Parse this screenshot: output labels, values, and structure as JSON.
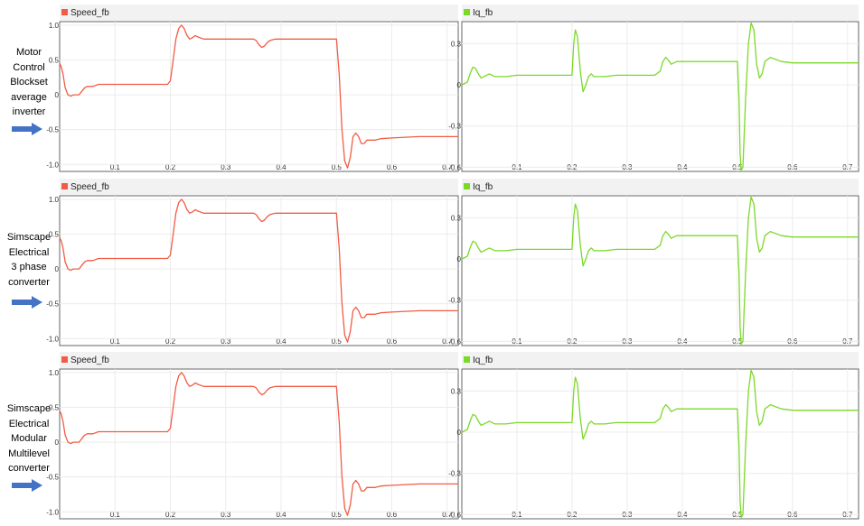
{
  "rows": [
    {
      "label": [
        "Motor",
        "Control",
        "Blockset",
        "average",
        "inverter"
      ]
    },
    {
      "label": [
        "Simscape",
        "Electrical",
        "3 phase",
        "converter"
      ]
    },
    {
      "label": [
        "Simscape",
        "Electrical",
        "Modular",
        "Multilevel",
        "converter"
      ]
    }
  ],
  "colors": {
    "speed": "#f25c45",
    "iq": "#7bd928",
    "arrow": "#4472c4",
    "axis_bg": "#ffffff",
    "header_bg": "#f2f2f2"
  },
  "chart_data": [
    {
      "type": "line",
      "panel": "Motor Control Blockset average inverter - Speed_fb",
      "series": [
        {
          "name": "Speed_fb",
          "x": [
            0,
            0.003,
            0.006,
            0.01,
            0.015,
            0.02,
            0.025,
            0.03,
            0.035,
            0.04,
            0.045,
            0.05,
            0.06,
            0.07,
            0.08,
            0.1,
            0.15,
            0.195,
            0.2,
            0.205,
            0.21,
            0.215,
            0.22,
            0.225,
            0.23,
            0.235,
            0.24,
            0.245,
            0.25,
            0.26,
            0.28,
            0.34,
            0.35,
            0.355,
            0.36,
            0.365,
            0.37,
            0.375,
            0.38,
            0.39,
            0.4,
            0.42,
            0.5,
            0.505,
            0.51,
            0.515,
            0.52,
            0.525,
            0.53,
            0.535,
            0.54,
            0.545,
            0.55,
            0.555,
            0.56,
            0.57,
            0.58,
            0.6,
            0.65,
            0.7,
            0.72
          ],
          "y": [
            0.45,
            0.4,
            0.3,
            0.1,
            0.0,
            -0.02,
            0.0,
            0.0,
            0.0,
            0.05,
            0.1,
            0.12,
            0.12,
            0.15,
            0.15,
            0.15,
            0.15,
            0.15,
            0.2,
            0.5,
            0.8,
            0.95,
            1.0,
            0.95,
            0.85,
            0.8,
            0.82,
            0.85,
            0.83,
            0.8,
            0.8,
            0.8,
            0.8,
            0.78,
            0.72,
            0.68,
            0.7,
            0.75,
            0.78,
            0.8,
            0.8,
            0.8,
            0.8,
            0.3,
            -0.5,
            -0.95,
            -1.05,
            -0.9,
            -0.6,
            -0.55,
            -0.6,
            -0.7,
            -0.7,
            -0.65,
            -0.65,
            -0.65,
            -0.63,
            -0.62,
            -0.6,
            -0.6,
            -0.6
          ]
        }
      ],
      "xlim": [
        0,
        0.72
      ],
      "ylim": [
        -1.1,
        1.05
      ],
      "xticks": [
        "0.1",
        "0.2",
        "0.3",
        "0.4",
        "0.5",
        "0.6",
        "0.7"
      ],
      "yticks": [
        "1.0",
        "0.5",
        "0",
        "-0.5",
        "-1.0"
      ],
      "grid": true,
      "legend": "top-left"
    },
    {
      "type": "line",
      "panel": "Motor Control Blockset average inverter - Iq_fb",
      "series": [
        {
          "name": "Iq_fb",
          "x": [
            0,
            0.01,
            0.015,
            0.02,
            0.025,
            0.03,
            0.035,
            0.04,
            0.05,
            0.06,
            0.08,
            0.1,
            0.15,
            0.195,
            0.2,
            0.203,
            0.206,
            0.21,
            0.215,
            0.22,
            0.225,
            0.23,
            0.235,
            0.24,
            0.25,
            0.26,
            0.28,
            0.35,
            0.36,
            0.365,
            0.37,
            0.375,
            0.38,
            0.385,
            0.39,
            0.4,
            0.5,
            0.503,
            0.505,
            0.507,
            0.51,
            0.515,
            0.52,
            0.525,
            0.53,
            0.535,
            0.54,
            0.545,
            0.55,
            0.56,
            0.58,
            0.6,
            0.65,
            0.7,
            0.72
          ],
          "y": [
            0,
            0.02,
            0.08,
            0.13,
            0.12,
            0.08,
            0.05,
            0.06,
            0.08,
            0.06,
            0.06,
            0.07,
            0.07,
            0.07,
            0.07,
            0.3,
            0.4,
            0.35,
            0.1,
            -0.05,
            0.0,
            0.06,
            0.08,
            0.06,
            0.06,
            0.06,
            0.07,
            0.07,
            0.1,
            0.17,
            0.2,
            0.18,
            0.15,
            0.16,
            0.17,
            0.17,
            0.17,
            -0.1,
            -0.5,
            -0.62,
            -0.6,
            -0.1,
            0.3,
            0.45,
            0.4,
            0.15,
            0.05,
            0.08,
            0.17,
            0.2,
            0.17,
            0.16,
            0.16,
            0.16,
            0.16
          ]
        }
      ],
      "xlim": [
        0,
        0.72
      ],
      "ylim": [
        -0.63,
        0.46
      ],
      "xticks": [
        "0.1",
        "0.2",
        "0.3",
        "0.4",
        "0.5",
        "0.6",
        "0.7"
      ],
      "yticks": [
        "0.3",
        "0",
        "-0.3",
        "-0.6"
      ],
      "grid": true,
      "legend": "top-left"
    },
    {
      "type": "line",
      "panel": "Simscape Electrical 3 phase converter - Speed_fb",
      "series": [
        {
          "name": "Speed_fb",
          "x": [
            0,
            0.003,
            0.006,
            0.01,
            0.015,
            0.02,
            0.025,
            0.03,
            0.035,
            0.04,
            0.045,
            0.05,
            0.06,
            0.07,
            0.08,
            0.1,
            0.15,
            0.195,
            0.2,
            0.205,
            0.21,
            0.215,
            0.22,
            0.225,
            0.23,
            0.235,
            0.24,
            0.245,
            0.25,
            0.26,
            0.28,
            0.34,
            0.35,
            0.355,
            0.36,
            0.365,
            0.37,
            0.375,
            0.38,
            0.39,
            0.4,
            0.42,
            0.5,
            0.505,
            0.51,
            0.515,
            0.52,
            0.525,
            0.53,
            0.535,
            0.54,
            0.545,
            0.55,
            0.555,
            0.56,
            0.57,
            0.58,
            0.6,
            0.65,
            0.7,
            0.72
          ],
          "y": [
            0.45,
            0.4,
            0.3,
            0.1,
            0.0,
            -0.02,
            0.0,
            0.0,
            0.0,
            0.05,
            0.1,
            0.12,
            0.12,
            0.15,
            0.15,
            0.15,
            0.15,
            0.15,
            0.2,
            0.5,
            0.8,
            0.95,
            1.0,
            0.95,
            0.85,
            0.8,
            0.82,
            0.85,
            0.83,
            0.8,
            0.8,
            0.8,
            0.8,
            0.78,
            0.72,
            0.68,
            0.7,
            0.75,
            0.78,
            0.8,
            0.8,
            0.8,
            0.8,
            0.3,
            -0.5,
            -0.95,
            -1.05,
            -0.9,
            -0.6,
            -0.55,
            -0.6,
            -0.7,
            -0.7,
            -0.65,
            -0.65,
            -0.65,
            -0.63,
            -0.62,
            -0.6,
            -0.6,
            -0.6
          ]
        }
      ],
      "xlim": [
        0,
        0.72
      ],
      "ylim": [
        -1.1,
        1.05
      ],
      "xticks": [
        "0.1",
        "0.2",
        "0.3",
        "0.4",
        "0.5",
        "0.6",
        "0.7"
      ],
      "yticks": [
        "1.0",
        "0.5",
        "0",
        "-0.5",
        "-1.0"
      ],
      "grid": true,
      "legend": "top-left"
    },
    {
      "type": "line",
      "panel": "Simscape Electrical 3 phase converter - Iq_fb",
      "series": [
        {
          "name": "Iq_fb",
          "x": [
            0,
            0.01,
            0.015,
            0.02,
            0.025,
            0.03,
            0.035,
            0.04,
            0.05,
            0.06,
            0.08,
            0.1,
            0.15,
            0.195,
            0.2,
            0.203,
            0.206,
            0.21,
            0.215,
            0.22,
            0.225,
            0.23,
            0.235,
            0.24,
            0.25,
            0.26,
            0.28,
            0.35,
            0.36,
            0.365,
            0.37,
            0.375,
            0.38,
            0.385,
            0.39,
            0.4,
            0.5,
            0.503,
            0.505,
            0.507,
            0.51,
            0.515,
            0.52,
            0.525,
            0.53,
            0.535,
            0.54,
            0.545,
            0.55,
            0.56,
            0.58,
            0.6,
            0.65,
            0.7,
            0.72
          ],
          "y": [
            0,
            0.02,
            0.08,
            0.13,
            0.12,
            0.08,
            0.05,
            0.06,
            0.08,
            0.06,
            0.06,
            0.07,
            0.07,
            0.07,
            0.07,
            0.3,
            0.4,
            0.35,
            0.1,
            -0.05,
            0.0,
            0.06,
            0.08,
            0.06,
            0.06,
            0.06,
            0.07,
            0.07,
            0.1,
            0.17,
            0.2,
            0.18,
            0.15,
            0.16,
            0.17,
            0.17,
            0.17,
            -0.1,
            -0.5,
            -0.62,
            -0.6,
            -0.1,
            0.3,
            0.45,
            0.4,
            0.15,
            0.05,
            0.08,
            0.17,
            0.2,
            0.17,
            0.16,
            0.16,
            0.16,
            0.16
          ]
        }
      ],
      "xlim": [
        0,
        0.72
      ],
      "ylim": [
        -0.63,
        0.46
      ],
      "xticks": [
        "0.1",
        "0.2",
        "0.3",
        "0.4",
        "0.5",
        "0.6",
        "0.7"
      ],
      "yticks": [
        "0.3",
        "0",
        "-0.3",
        "-0.6"
      ],
      "grid": true,
      "legend": "top-left"
    },
    {
      "type": "line",
      "panel": "Simscape Electrical Modular Multilevel converter - Speed_fb",
      "series": [
        {
          "name": "Speed_fb",
          "x": [
            0,
            0.003,
            0.006,
            0.01,
            0.015,
            0.02,
            0.025,
            0.03,
            0.035,
            0.04,
            0.045,
            0.05,
            0.06,
            0.07,
            0.08,
            0.1,
            0.15,
            0.195,
            0.2,
            0.205,
            0.21,
            0.215,
            0.22,
            0.225,
            0.23,
            0.235,
            0.24,
            0.245,
            0.25,
            0.26,
            0.28,
            0.34,
            0.35,
            0.355,
            0.36,
            0.365,
            0.37,
            0.375,
            0.38,
            0.39,
            0.4,
            0.42,
            0.5,
            0.505,
            0.51,
            0.515,
            0.52,
            0.525,
            0.53,
            0.535,
            0.54,
            0.545,
            0.55,
            0.555,
            0.56,
            0.57,
            0.58,
            0.6,
            0.65,
            0.7,
            0.72
          ],
          "y": [
            0.45,
            0.4,
            0.3,
            0.1,
            0.0,
            -0.02,
            0.0,
            0.0,
            0.0,
            0.05,
            0.1,
            0.12,
            0.12,
            0.15,
            0.15,
            0.15,
            0.15,
            0.15,
            0.2,
            0.5,
            0.8,
            0.95,
            1.0,
            0.95,
            0.85,
            0.8,
            0.82,
            0.85,
            0.83,
            0.8,
            0.8,
            0.8,
            0.8,
            0.78,
            0.72,
            0.68,
            0.7,
            0.75,
            0.78,
            0.8,
            0.8,
            0.8,
            0.8,
            0.3,
            -0.5,
            -0.95,
            -1.05,
            -0.9,
            -0.6,
            -0.55,
            -0.6,
            -0.7,
            -0.7,
            -0.65,
            -0.65,
            -0.65,
            -0.63,
            -0.62,
            -0.6,
            -0.6,
            -0.6
          ]
        }
      ],
      "xlim": [
        0,
        0.72
      ],
      "ylim": [
        -1.1,
        1.05
      ],
      "xticks": [
        "0.1",
        "0.2",
        "0.3",
        "0.4",
        "0.5",
        "0.6",
        "0.7"
      ],
      "yticks": [
        "1.0",
        "0.5",
        "0",
        "-0.5",
        "-1.0"
      ],
      "grid": true,
      "legend": "top-left"
    },
    {
      "type": "line",
      "panel": "Simscape Electrical Modular Multilevel converter - Iq_fb",
      "series": [
        {
          "name": "Iq_fb",
          "x": [
            0,
            0.01,
            0.015,
            0.02,
            0.025,
            0.03,
            0.035,
            0.04,
            0.05,
            0.06,
            0.08,
            0.1,
            0.15,
            0.195,
            0.2,
            0.203,
            0.206,
            0.21,
            0.215,
            0.22,
            0.225,
            0.23,
            0.235,
            0.24,
            0.25,
            0.26,
            0.28,
            0.35,
            0.36,
            0.365,
            0.37,
            0.375,
            0.38,
            0.385,
            0.39,
            0.4,
            0.5,
            0.503,
            0.505,
            0.507,
            0.51,
            0.515,
            0.52,
            0.525,
            0.53,
            0.535,
            0.54,
            0.545,
            0.55,
            0.56,
            0.58,
            0.6,
            0.65,
            0.7,
            0.72
          ],
          "y": [
            0,
            0.02,
            0.08,
            0.13,
            0.12,
            0.08,
            0.05,
            0.06,
            0.08,
            0.06,
            0.06,
            0.07,
            0.07,
            0.07,
            0.07,
            0.3,
            0.4,
            0.35,
            0.1,
            -0.05,
            0.0,
            0.06,
            0.08,
            0.06,
            0.06,
            0.06,
            0.07,
            0.07,
            0.1,
            0.17,
            0.2,
            0.18,
            0.15,
            0.16,
            0.17,
            0.17,
            0.17,
            -0.1,
            -0.5,
            -0.62,
            -0.6,
            -0.1,
            0.3,
            0.45,
            0.4,
            0.15,
            0.05,
            0.08,
            0.17,
            0.2,
            0.17,
            0.16,
            0.16,
            0.16,
            0.16
          ]
        }
      ],
      "xlim": [
        0,
        0.72
      ],
      "ylim": [
        -0.63,
        0.46
      ],
      "xticks": [
        "0.1",
        "0.2",
        "0.3",
        "0.4",
        "0.5",
        "0.6",
        "0.7"
      ],
      "yticks": [
        "0.3",
        "0",
        "-0.3",
        "-0.6"
      ],
      "grid": true,
      "legend": "top-left"
    }
  ]
}
